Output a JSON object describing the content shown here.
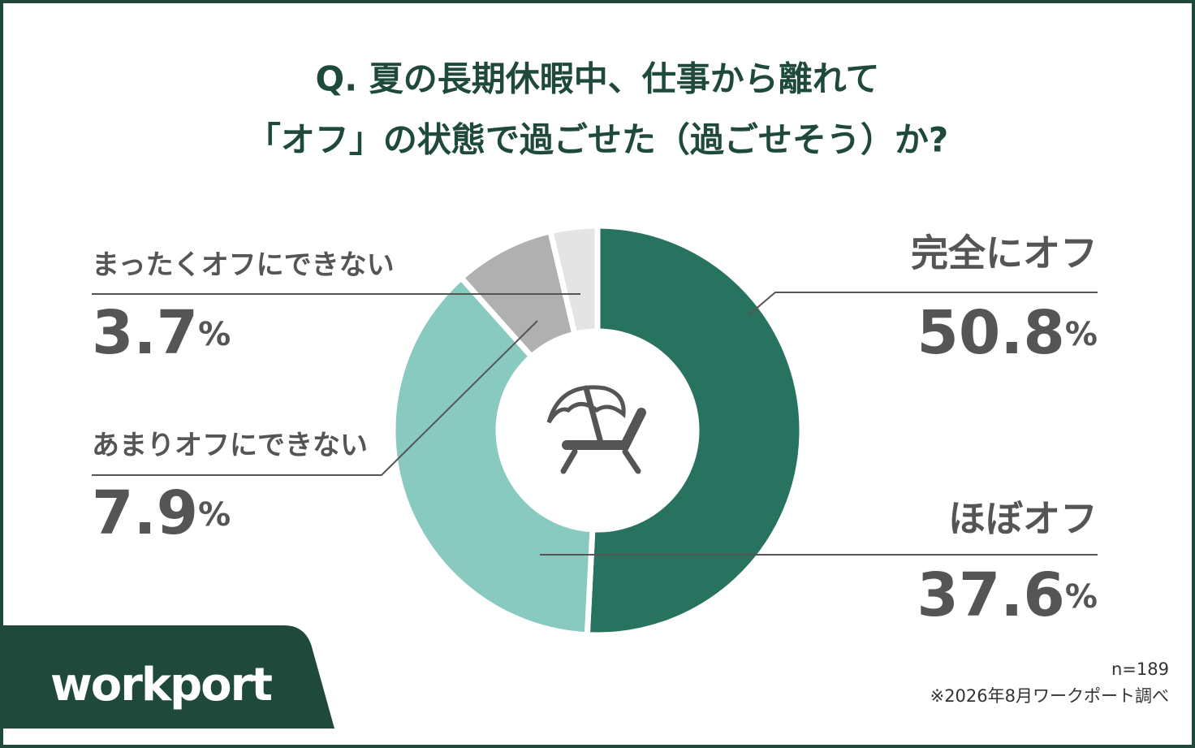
{
  "chart_data": {
    "type": "pie",
    "title_lines": [
      "Q. 夏の長期休暇中、仕事から離れて",
      "「オフ」の状態で過ごせた（過ごせそう）か?"
    ],
    "categories": [
      "完全にオフ",
      "ほぼオフ",
      "あまりオフにできない",
      "まったくオフにできない"
    ],
    "values": [
      50.8,
      37.6,
      7.9,
      3.7
    ],
    "unit": "%",
    "colors": [
      "#27735f",
      "#88c9c0",
      "#b0b0b0",
      "#e4e4e4"
    ],
    "sample": "n=189",
    "source": "※2026年8月ワークポート調べ",
    "brand": "workport"
  }
}
